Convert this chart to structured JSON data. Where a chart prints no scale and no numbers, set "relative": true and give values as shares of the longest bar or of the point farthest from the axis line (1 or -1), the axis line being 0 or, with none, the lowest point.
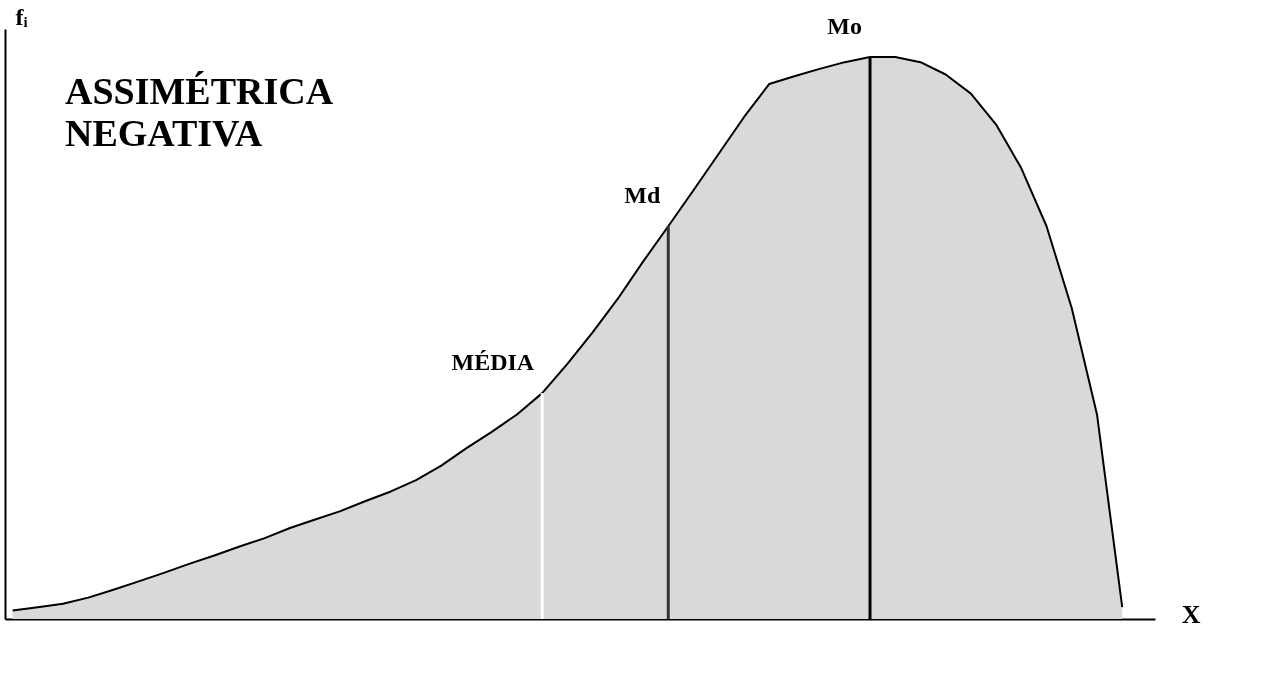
{
  "chart_data": {
    "type": "area",
    "relative": true,
    "ylabel": "fᵢ",
    "xlabel": "X",
    "annotations": [
      "ASSIMÉTRICA NEGATIVA",
      "MÉDIA",
      "Md",
      "Mo"
    ],
    "categories": [
      null,
      null,
      null,
      null,
      null,
      null,
      null,
      null,
      null,
      null,
      null,
      null,
      null,
      null,
      null,
      null,
      null,
      null,
      null,
      null,
      null,
      null,
      null,
      null,
      null,
      null,
      null,
      null,
      null,
      null,
      null,
      null,
      null,
      null,
      null,
      null,
      null,
      null,
      null,
      null,
      null,
      null,
      null,
      null,
      null
    ],
    "series": [
      {
        "color": "#d9d9d9",
        "values": [
          0.015,
          0.021,
          0.027,
          0.038,
          0.052,
          0.067,
          0.082,
          0.098,
          0.113,
          0.129,
          0.144,
          0.162,
          0.177,
          0.192,
          0.21,
          0.227,
          0.247,
          0.273,
          0.304,
          0.333,
          0.364,
          0.402,
          0.454,
          0.51,
          0.57,
          0.636,
          0.699,
          0.763,
          0.828,
          0.893,
          0.952,
          0.966,
          0.979,
          0.991,
          1.0,
          1.0,
          0.991,
          0.969,
          0.935,
          0.88,
          0.802,
          0.699,
          0.553,
          0.364,
          0.021
        ]
      }
    ]
  }
}
